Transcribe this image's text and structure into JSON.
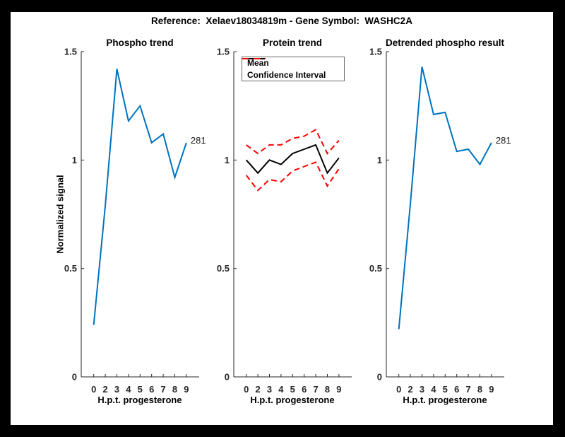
{
  "header": {
    "title": "Reference:  Xelaev18034819m - Gene Symbol:  WASHC2A"
  },
  "colors": {
    "background": "#FFFFFF",
    "frame": "#000000",
    "axis": "#262626",
    "blue": "#0072BD",
    "red": "#FF0000",
    "black": "#000000"
  },
  "axes": {
    "xlabel": "H.p.t. progesterone",
    "ylabel": "Normalized signal",
    "x_tick_labels": [
      "0",
      "2",
      "3",
      "4",
      "5",
      "6",
      "7",
      "8",
      "9"
    ],
    "y_tick_values": [
      0,
      0.5,
      1,
      1.5
    ],
    "y_tick_labels": [
      "0",
      "0.5",
      "1",
      "1.5"
    ],
    "ylim": [
      0,
      1.5
    ]
  },
  "chart_data": [
    {
      "type": "line",
      "title": "Phospho trend",
      "xlabel": "H.p.t. progesterone",
      "ylabel": "Normalized signal",
      "x_tick_labels": [
        "0",
        "2",
        "3",
        "4",
        "5",
        "6",
        "7",
        "8",
        "9"
      ],
      "ylim": [
        0,
        1.5
      ],
      "grid": false,
      "end_label": "281",
      "series": [
        {
          "name": "phospho-signal",
          "color": "#0072BD",
          "style": "solid",
          "values": [
            0.24,
            0.79,
            1.42,
            1.18,
            1.25,
            1.08,
            1.12,
            0.92,
            1.08
          ]
        }
      ]
    },
    {
      "type": "line",
      "title": "Protein trend",
      "xlabel": "H.p.t. progesterone",
      "x_tick_labels": [
        "0",
        "2",
        "3",
        "4",
        "5",
        "6",
        "7",
        "8",
        "9"
      ],
      "ylim": [
        0,
        1.5
      ],
      "grid": false,
      "legend": {
        "position": "top-left",
        "entries": [
          {
            "label": "Mean",
            "color": "#000000",
            "style": "solid"
          },
          {
            "label": "Confidence Interval",
            "color": "#FF0000",
            "style": "dashed"
          }
        ]
      },
      "series": [
        {
          "name": "mean",
          "color": "#000000",
          "style": "solid",
          "values": [
            1.0,
            0.94,
            1.0,
            0.98,
            1.03,
            1.05,
            1.07,
            0.94,
            1.01
          ]
        },
        {
          "name": "confidence-upper",
          "color": "#FF0000",
          "style": "dashed",
          "values": [
            1.07,
            1.03,
            1.07,
            1.07,
            1.1,
            1.11,
            1.14,
            1.03,
            1.09
          ]
        },
        {
          "name": "confidence-lower",
          "color": "#FF0000",
          "style": "dashed",
          "values": [
            0.93,
            0.86,
            0.91,
            0.9,
            0.95,
            0.97,
            0.99,
            0.88,
            0.96
          ]
        }
      ]
    },
    {
      "type": "line",
      "title": "Detrended phospho result",
      "xlabel": "H.p.t. progesterone",
      "x_tick_labels": [
        "0",
        "2",
        "3",
        "4",
        "5",
        "6",
        "7",
        "8",
        "9"
      ],
      "ylim": [
        0,
        1.5
      ],
      "grid": false,
      "end_label": "281",
      "series": [
        {
          "name": "detrended-phospho-signal",
          "color": "#0072BD",
          "style": "solid",
          "values": [
            0.22,
            0.8,
            1.43,
            1.21,
            1.22,
            1.04,
            1.05,
            0.98,
            1.08
          ]
        }
      ]
    }
  ]
}
